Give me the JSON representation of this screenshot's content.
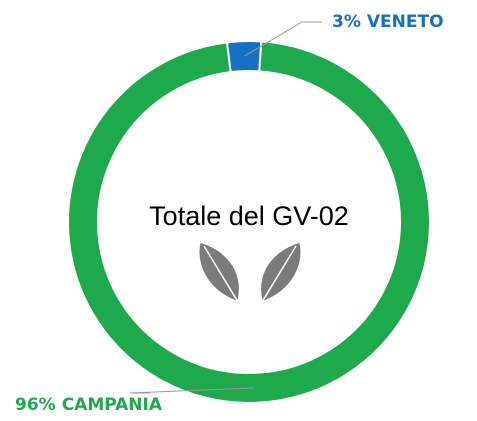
{
  "chart_data": {
    "type": "pie",
    "annotation": "Totale del GV-02",
    "categories": [
      "VENETO",
      "CAMPANIA"
    ],
    "values": [
      3,
      96
    ],
    "value_labels": [
      "3%",
      "96%"
    ],
    "colors": [
      "#1670c4",
      "#1eaa4c"
    ]
  }
}
